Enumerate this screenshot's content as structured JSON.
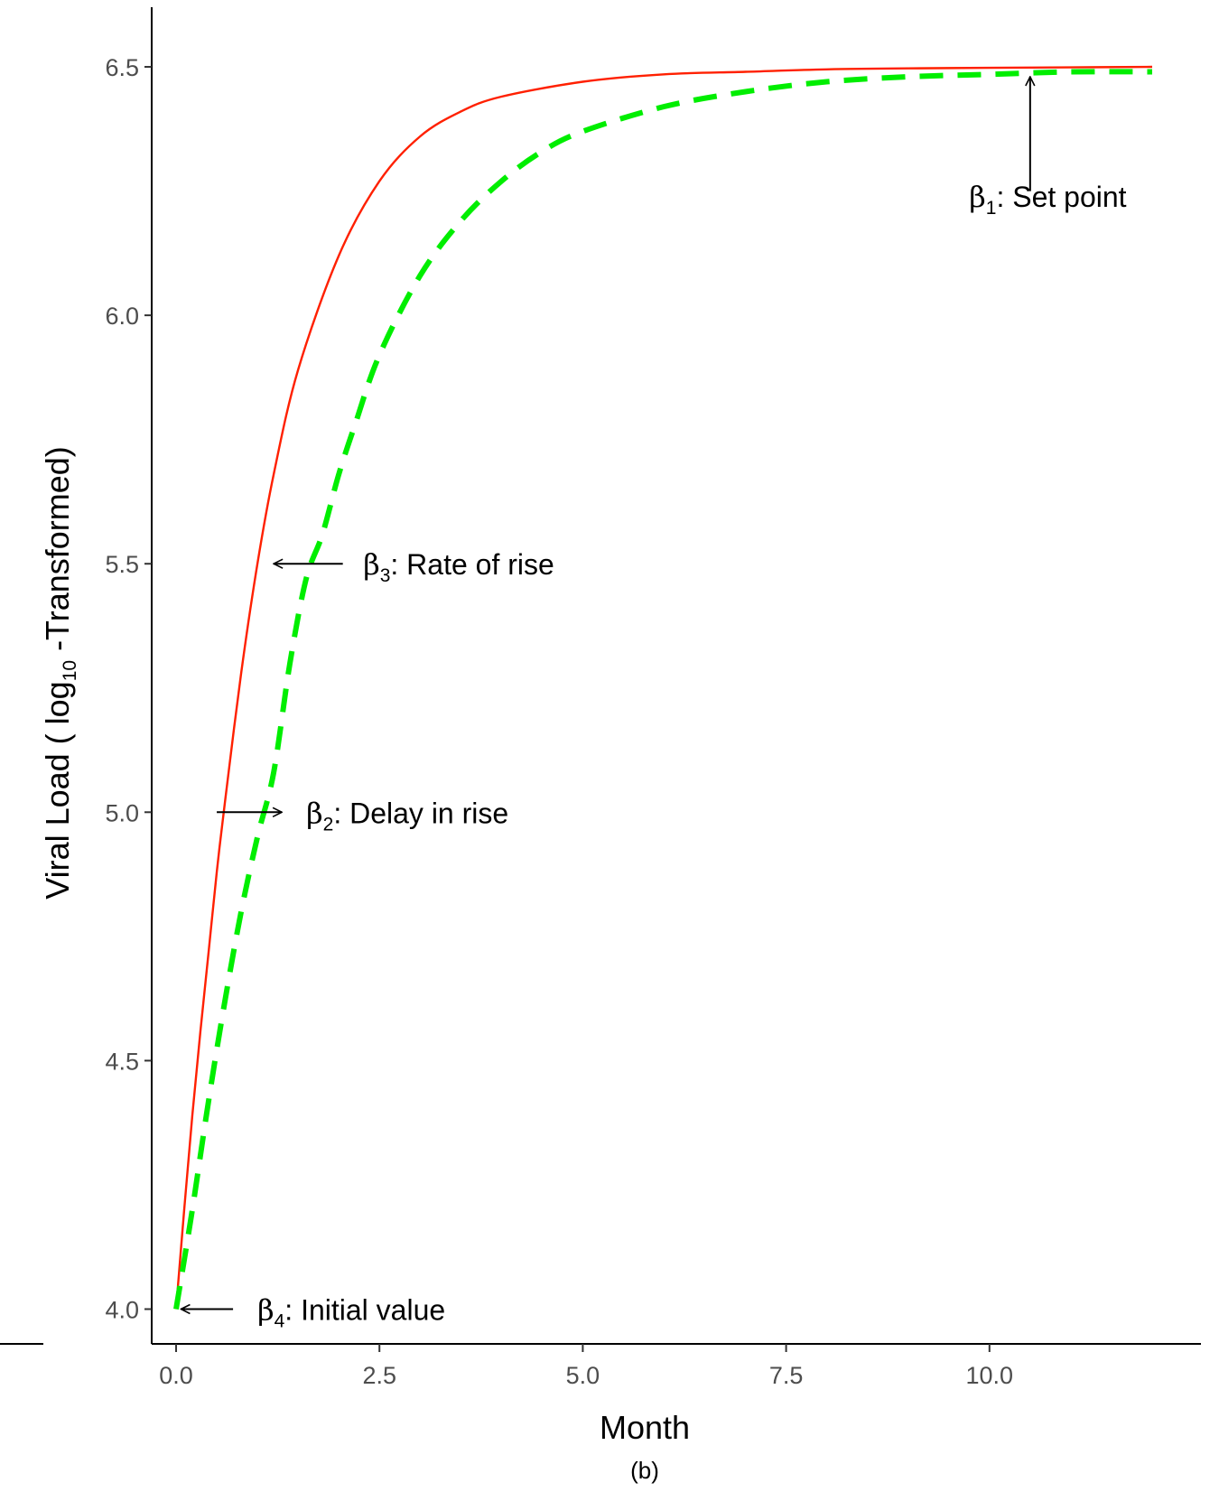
{
  "chart_data": {
    "type": "line",
    "xlabel": "Month",
    "ylabel": "Viral Load ( log10 -Transformed)",
    "ylabel_parts": [
      "Viral Load ( log",
      "10",
      " -Transformed)"
    ],
    "caption": "(b)",
    "xlim": [
      -0.3,
      12.6
    ],
    "ylim": [
      3.93,
      6.62
    ],
    "x_ticks": [
      0,
      2.5,
      5,
      7.5,
      10
    ],
    "x_tick_labels": [
      "0.0",
      "2.5",
      "5.0",
      "7.5",
      "10.0"
    ],
    "y_ticks": [
      4,
      4.5,
      5,
      5.5,
      6,
      6.5
    ],
    "y_tick_labels": [
      "4.0",
      "4.5",
      "5.0",
      "5.5",
      "6.0",
      "6.5"
    ],
    "grid": false,
    "legend": "none",
    "series": [
      {
        "style": "solid",
        "color": "#ff2000",
        "x": [
          0,
          0.1,
          0.2,
          0.3,
          0.4,
          0.5,
          0.6,
          0.8,
          1.0,
          1.2,
          1.5,
          2.0,
          2.5,
          3.0,
          3.5,
          4.0,
          5.0,
          6.0,
          7.0,
          8.0,
          9.0,
          10.0,
          11.0,
          12.0
        ],
        "y": [
          4.0,
          4.2,
          4.39,
          4.56,
          4.72,
          4.88,
          5.02,
          5.28,
          5.5,
          5.68,
          5.89,
          6.12,
          6.27,
          6.36,
          6.41,
          6.44,
          6.47,
          6.485,
          6.49,
          6.495,
          6.497,
          6.498,
          6.499,
          6.5
        ]
      },
      {
        "style": "dashed",
        "color": "#00ee00",
        "x": [
          0,
          0.2,
          0.4,
          0.6,
          0.8,
          1.0,
          1.2,
          1.4,
          1.6,
          1.8,
          2.0,
          2.2,
          2.5,
          3.0,
          3.5,
          4.0,
          4.5,
          5.0,
          6.0,
          7.0,
          8.0,
          9.0,
          10.0,
          11.0,
          12.0
        ],
        "y": [
          4.0,
          4.2,
          4.42,
          4.62,
          4.8,
          4.95,
          5.08,
          5.3,
          5.47,
          5.56,
          5.68,
          5.78,
          5.92,
          6.08,
          6.19,
          6.27,
          6.33,
          6.37,
          6.42,
          6.45,
          6.47,
          6.48,
          6.485,
          6.49,
          6.49
        ]
      }
    ],
    "annotations": [
      {
        "id": "beta1",
        "beta": "β",
        "sub": "1",
        "text": ": Set point",
        "arrow_from": [
          10.5,
          6.25
        ],
        "arrow_to": [
          10.5,
          6.48
        ],
        "text_at": [
          9.75,
          6.24
        ]
      },
      {
        "id": "beta3",
        "beta": "β",
        "sub": "3",
        "text": ": Rate of rise",
        "arrow_from": [
          2.05,
          5.5
        ],
        "arrow_to": [
          1.2,
          5.5
        ],
        "text_at": [
          2.3,
          5.5
        ]
      },
      {
        "id": "beta2",
        "beta": "β",
        "sub": "2",
        "text": ": Delay in rise",
        "arrow_from": [
          0.5,
          5.0
        ],
        "arrow_to": [
          1.3,
          5.0
        ],
        "text_at": [
          1.6,
          5.0
        ]
      },
      {
        "id": "beta4",
        "beta": "β",
        "sub": "4",
        "text": ": Initial value",
        "arrow_from": [
          0.7,
          4.0
        ],
        "arrow_to": [
          0.06,
          4.0
        ],
        "text_at": [
          1.0,
          4.0
        ]
      }
    ]
  }
}
